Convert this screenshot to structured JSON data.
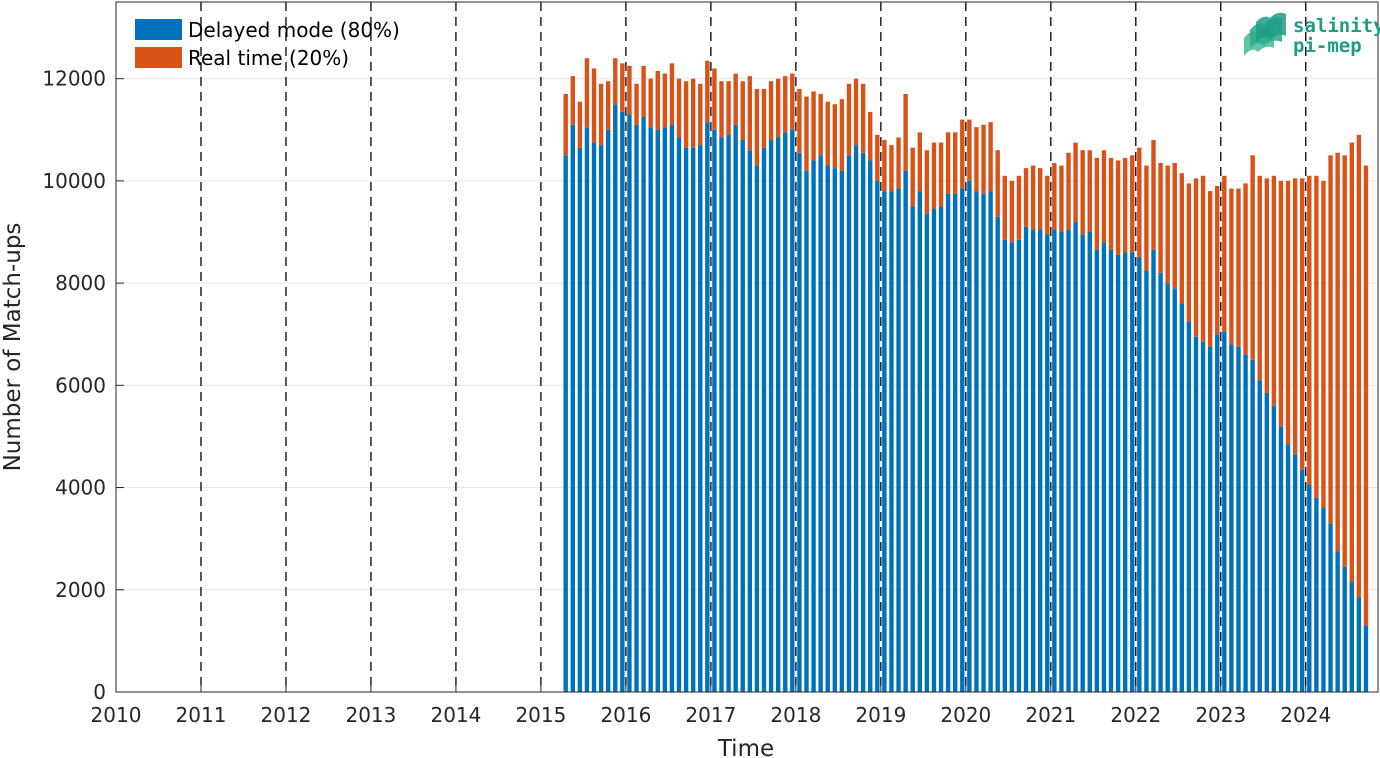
{
  "chart_data": {
    "type": "bar",
    "stacked": true,
    "xlabel": "Time",
    "ylabel": "Number of Match-ups",
    "xlim": [
      2010,
      2024.85
    ],
    "ylim": [
      0,
      13500
    ],
    "x_ticks": [
      2010,
      2011,
      2012,
      2013,
      2014,
      2015,
      2016,
      2017,
      2018,
      2019,
      2020,
      2021,
      2022,
      2023,
      2024
    ],
    "y_ticks": [
      0,
      2000,
      4000,
      6000,
      8000,
      10000,
      12000
    ],
    "year_separators": [
      2011,
      2012,
      2013,
      2014,
      2015,
      2016,
      2017,
      2018,
      2019,
      2020,
      2021,
      2022,
      2023,
      2024
    ],
    "grid": "horizontal",
    "legend_position": "top-left",
    "series_colors": [
      "#0072bd",
      "#d95319"
    ],
    "first_month": "2015-04",
    "months": [
      "2015-04",
      "2015-05",
      "2015-06",
      "2015-07",
      "2015-08",
      "2015-09",
      "2015-10",
      "2015-11",
      "2015-12",
      "2016-01",
      "2016-02",
      "2016-03",
      "2016-04",
      "2016-05",
      "2016-06",
      "2016-07",
      "2016-08",
      "2016-09",
      "2016-10",
      "2016-11",
      "2016-12",
      "2017-01",
      "2017-02",
      "2017-03",
      "2017-04",
      "2017-05",
      "2017-06",
      "2017-07",
      "2017-08",
      "2017-09",
      "2017-10",
      "2017-11",
      "2017-12",
      "2018-01",
      "2018-02",
      "2018-03",
      "2018-04",
      "2018-05",
      "2018-06",
      "2018-07",
      "2018-08",
      "2018-09",
      "2018-10",
      "2018-11",
      "2018-12",
      "2019-01",
      "2019-02",
      "2019-03",
      "2019-04",
      "2019-05",
      "2019-06",
      "2019-07",
      "2019-08",
      "2019-09",
      "2019-10",
      "2019-11",
      "2019-12",
      "2020-01",
      "2020-02",
      "2020-03",
      "2020-04",
      "2020-05",
      "2020-06",
      "2020-07",
      "2020-08",
      "2020-09",
      "2020-10",
      "2020-11",
      "2020-12",
      "2021-01",
      "2021-02",
      "2021-03",
      "2021-04",
      "2021-05",
      "2021-06",
      "2021-07",
      "2021-08",
      "2021-09",
      "2021-10",
      "2021-11",
      "2021-12",
      "2022-01",
      "2022-02",
      "2022-03",
      "2022-04",
      "2022-05",
      "2022-06",
      "2022-07",
      "2022-08",
      "2022-09",
      "2022-10",
      "2022-11",
      "2022-12",
      "2023-01",
      "2023-02",
      "2023-03",
      "2023-04",
      "2023-05",
      "2023-06",
      "2023-07",
      "2023-08",
      "2023-09",
      "2023-10",
      "2023-11",
      "2023-12",
      "2024-01",
      "2024-02",
      "2024-03",
      "2024-04",
      "2024-05",
      "2024-06",
      "2024-07",
      "2024-08",
      "2024-09",
      "2024-10"
    ],
    "series": [
      {
        "name": "Delayed mode (80%)",
        "values": [
          10500,
          11100,
          10650,
          11050,
          10750,
          10700,
          11000,
          11500,
          11350,
          11300,
          11100,
          11250,
          11050,
          11000,
          11050,
          11100,
          10850,
          10650,
          10650,
          10700,
          11150,
          11000,
          10850,
          10900,
          11100,
          10800,
          10600,
          10300,
          10650,
          10800,
          10850,
          10950,
          11000,
          10550,
          10200,
          10400,
          10500,
          10300,
          10250,
          10200,
          10500,
          10700,
          10550,
          10400,
          10000,
          9800,
          9800,
          9850,
          10200,
          9500,
          9800,
          9350,
          9450,
          9500,
          9750,
          9750,
          9850,
          10000,
          9800,
          9750,
          9800,
          9300,
          8850,
          8800,
          8850,
          9100,
          9050,
          9050,
          8950,
          9050,
          9000,
          9050,
          9200,
          8950,
          9000,
          8650,
          8800,
          8650,
          8550,
          8600,
          8600,
          8500,
          8250,
          8650,
          8200,
          8000,
          7900,
          7600,
          7250,
          6950,
          6850,
          6750,
          7000,
          7050,
          6800,
          6750,
          6600,
          6500,
          6100,
          5850,
          5600,
          5200,
          4850,
          4650,
          4350,
          4050,
          3800,
          3600,
          3300,
          2750,
          2450,
          2150,
          1850,
          1300
        ],
        "real_values": []
      },
      {
        "name": "Real time (20%)",
        "totals": [
          11700,
          12050,
          11550,
          12400,
          12200,
          11900,
          11950,
          12400,
          12300,
          12250,
          11900,
          12250,
          12000,
          12150,
          12100,
          12300,
          12000,
          11950,
          12000,
          11900,
          12350,
          12200,
          11950,
          11950,
          12100,
          11950,
          12050,
          11800,
          11800,
          11950,
          12000,
          12050,
          12100,
          11800,
          11650,
          11750,
          11700,
          11550,
          11500,
          11600,
          11900,
          12000,
          11900,
          11350,
          10900,
          10800,
          10700,
          10850,
          11700,
          10650,
          10950,
          10600,
          10750,
          10750,
          10950,
          10950,
          11200,
          11200,
          11050,
          11100,
          11150,
          10600,
          10100,
          10000,
          10100,
          10250,
          10300,
          10250,
          10100,
          10350,
          10300,
          10550,
          10750,
          10600,
          10600,
          10450,
          10600,
          10450,
          10400,
          10450,
          10500,
          10650,
          10300,
          10800,
          10350,
          10300,
          10350,
          10150,
          9950,
          10050,
          10100,
          9800,
          9900,
          10100,
          9850,
          9850,
          9950,
          10500,
          10100,
          10050,
          10100,
          10000,
          10000,
          10050,
          10050,
          10100,
          10100,
          10000,
          10500,
          10550,
          10500,
          10750,
          10900,
          10300
        ],
        "values": [
          1200,
          950,
          900,
          1350,
          1450,
          1200,
          950,
          900,
          950,
          950,
          800,
          1000,
          950,
          1150,
          1050,
          1200,
          1150,
          1300,
          1350,
          1200,
          1200,
          1200,
          1100,
          1050,
          1000,
          1150,
          1450,
          1500,
          1150,
          1150,
          1150,
          1100,
          1100,
          1250,
          1450,
          1350,
          1200,
          1250,
          1250,
          1400,
          1400,
          1300,
          1350,
          950,
          900,
          1000,
          900,
          1000,
          1500,
          1150,
          1150,
          1250,
          1300,
          1250,
          1200,
          1200,
          1350,
          1200,
          1250,
          1350,
          1350,
          1300,
          1250,
          1200,
          1250,
          1150,
          1250,
          1200,
          1150,
          1300,
          1300,
          1500,
          1550,
          1650,
          1600,
          1800,
          1800,
          1800,
          1850,
          1850,
          1900,
          2150,
          2050,
          2150,
          2150,
          2300,
          2450,
          2550,
          2700,
          3100,
          3250,
          3050,
          2900,
          3050,
          3050,
          3100,
          3350,
          4000,
          4000,
          4200,
          4500,
          4800,
          5150,
          5400,
          5700,
          6050,
          6300,
          6400,
          7200,
          7800,
          8050,
          8600,
          9050,
          9000
        ]
      }
    ]
  },
  "logo": {
    "line1": "salinity",
    "line2": "pi-mep"
  }
}
